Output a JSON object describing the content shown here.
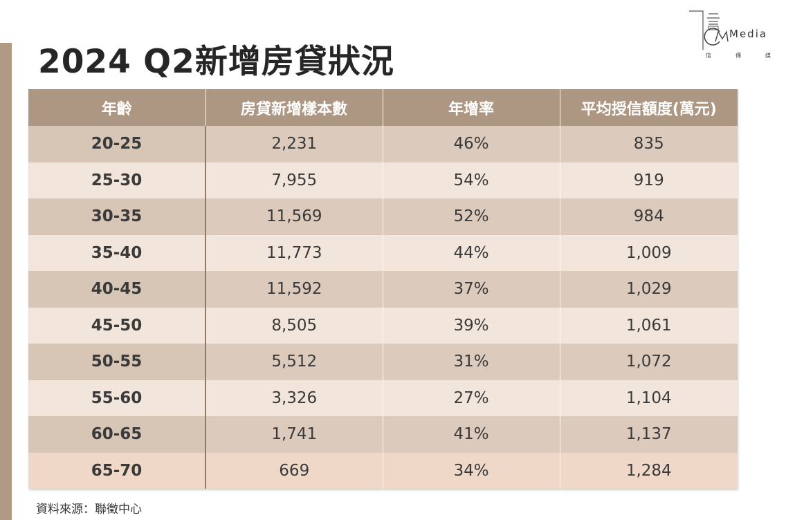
{
  "title": "2024 Q2新增房貸狀況",
  "logo": {
    "text": "Media",
    "sub": [
      "信",
      "傳",
      "媒"
    ]
  },
  "table": {
    "headers": [
      "年齡",
      "房貸新增樣本數",
      "年增率",
      "平均授信額度(萬元)"
    ],
    "rows": [
      [
        "20-25",
        "2,231",
        "46%",
        "835"
      ],
      [
        "25-30",
        "7,955",
        "54%",
        "919"
      ],
      [
        "30-35",
        "11,569",
        "52%",
        "984"
      ],
      [
        "35-40",
        "11,773",
        "44%",
        "1,009"
      ],
      [
        "40-45",
        "11,592",
        "37%",
        "1,029"
      ],
      [
        "45-50",
        "8,505",
        "39%",
        "1,061"
      ],
      [
        "50-55",
        "5,512",
        "31%",
        "1,072"
      ],
      [
        "55-60",
        "3,326",
        "27%",
        "1,104"
      ],
      [
        "60-65",
        "1,741",
        "41%",
        "1,137"
      ],
      [
        "65-70",
        "669",
        "34%",
        "1,284"
      ]
    ]
  },
  "footer": "資料來源：聯徵中心",
  "colors": {
    "header_bg": "#ad9782",
    "row_dark": "#dccabc",
    "row_light": "#f2e5db",
    "accent_bar": "#b09a84"
  }
}
